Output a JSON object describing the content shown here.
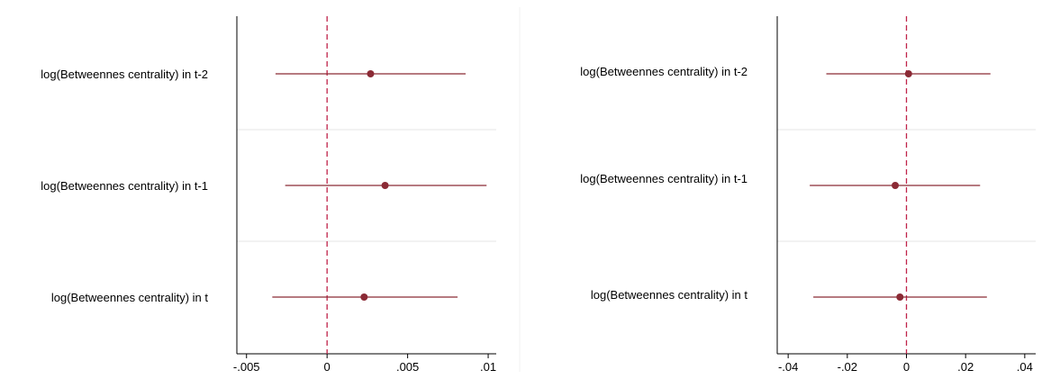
{
  "chart_data": [
    {
      "type": "coefplot",
      "title": "",
      "xlabel": "",
      "ylabel": "",
      "xlim": [
        -0.0056,
        0.0105
      ],
      "xticks": [
        {
          "value": -0.005,
          "label": "-.005"
        },
        {
          "value": 0,
          "label": "0"
        },
        {
          "value": 0.005,
          "label": ".005"
        },
        {
          "value": 0.01,
          "label": ".01"
        }
      ],
      "reference_line": 0,
      "categories": [
        "log(Betweennes centrality) in t-2",
        "log(Betweennes centrality) in t-1",
        "log(Betweennes centrality) in t"
      ],
      "estimates": [
        0.0027,
        0.0036,
        0.0023
      ],
      "ci_low": [
        -0.0032,
        -0.0026,
        -0.0034
      ],
      "ci_high": [
        0.0086,
        0.0099,
        0.0081
      ]
    },
    {
      "type": "coefplot",
      "title": "",
      "xlabel": "",
      "ylabel": "",
      "xlim": [
        -0.0437,
        0.0437
      ],
      "xticks": [
        {
          "value": -0.04,
          "label": "-.04"
        },
        {
          "value": -0.02,
          "label": "-.02"
        },
        {
          "value": 0,
          "label": "0"
        },
        {
          "value": 0.02,
          "label": ".02"
        },
        {
          "value": 0.04,
          "label": ".04"
        }
      ],
      "reference_line": 0,
      "categories": [
        "log(Betweennes centrality) in t-2",
        "log(Betweennes centrality) in t-1",
        "log(Betweennes centrality) in t"
      ],
      "estimates": [
        0.0007,
        -0.0038,
        -0.0022
      ],
      "ci_low": [
        -0.0271,
        -0.0327,
        -0.0315
      ],
      "ci_high": [
        0.0284,
        0.0249,
        0.0272
      ]
    }
  ],
  "colors": {
    "marker": "#8b2a35",
    "ci_line": "#8b2a35",
    "reference_line": "#c0244a",
    "axis": "#000000",
    "separator": "#e5e5e5"
  }
}
